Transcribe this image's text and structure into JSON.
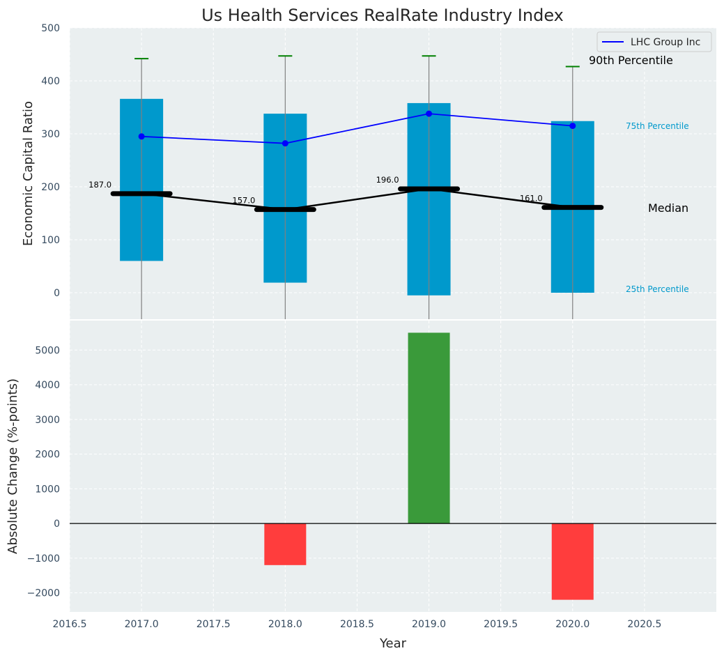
{
  "chart_data": [
    {
      "type": "box",
      "title": "Us Health Services RealRate Industry Index",
      "xlabel": "",
      "ylabel": "Economic Capital Ratio",
      "xlim": [
        2016.5,
        2021.0
      ],
      "ylim": [
        -50,
        500
      ],
      "x_ticks": [
        2016.5,
        2017.0,
        2017.5,
        2018.0,
        2018.5,
        2019.0,
        2019.5,
        2020.0,
        2020.5
      ],
      "x_tick_labels": [
        "2016.5",
        "2017.0",
        "2017.5",
        "2018.0",
        "2018.5",
        "2019.0",
        "2019.5",
        "2020.0",
        "2020.5"
      ],
      "y_ticks": [
        0,
        100,
        200,
        300,
        400,
        500
      ],
      "grid": true,
      "legend_position": "top-right",
      "boxes": [
        {
          "x": 2017,
          "p25": 60,
          "median": 187,
          "p75": 366,
          "p90": 442,
          "median_label": "187.0"
        },
        {
          "x": 2018,
          "p25": 19,
          "median": 157,
          "p75": 338,
          "p90": 447,
          "median_label": "157.0"
        },
        {
          "x": 2019,
          "p25": -5,
          "median": 196,
          "p75": 358,
          "p90": 447,
          "median_label": "196.0"
        },
        {
          "x": 2020,
          "p25": 0,
          "median": 161,
          "p75": 324,
          "p90": 427,
          "median_label": "161.0"
        }
      ],
      "series": [
        {
          "name": "LHC Group Inc",
          "x": [
            2017,
            2018,
            2019,
            2020
          ],
          "values": [
            295,
            282,
            338,
            315
          ]
        }
      ],
      "annotations": {
        "p90": "90th Percentile",
        "p75": "75th Percentile",
        "median": "Median",
        "p25": "25th Percentile"
      },
      "colors": {
        "box": "#0099cc",
        "company_line": "#0000ff",
        "median_line": "#000000",
        "whisker_cap": "#008000",
        "whisker": "#808080",
        "background": "#eaeff0"
      }
    },
    {
      "type": "bar",
      "title": "",
      "xlabel": "Year",
      "ylabel": "Absolute Change (%-points)",
      "x": [
        2018,
        2019,
        2020
      ],
      "values": [
        -1200,
        5500,
        -2200
      ],
      "xlim": [
        2016.5,
        2021.0
      ],
      "ylim": [
        -2550,
        5850
      ],
      "y_ticks": [
        -2000,
        -1000,
        0,
        1000,
        2000,
        3000,
        4000,
        5000
      ],
      "y_tick_labels": [
        "−2000",
        "−1000",
        "0",
        "1000",
        "2000",
        "3000",
        "4000",
        "5000"
      ],
      "grid": true,
      "colors": {
        "positive": "#3a9a3a",
        "negative": "#ff3d3d",
        "zero_line": "#000000"
      }
    }
  ]
}
